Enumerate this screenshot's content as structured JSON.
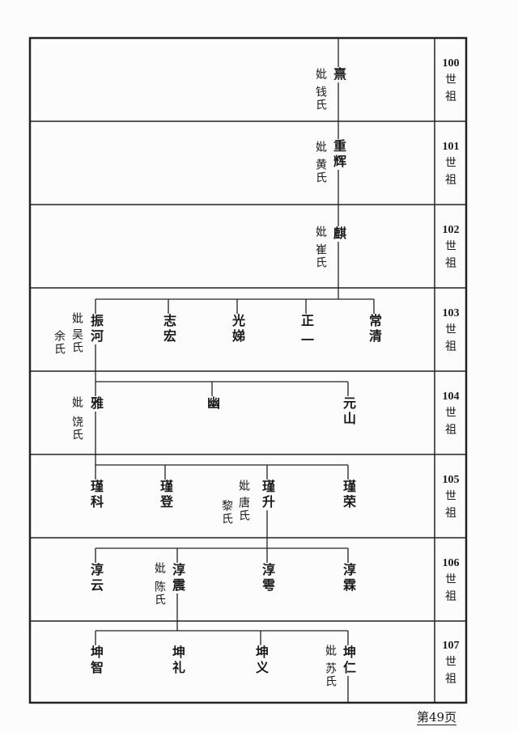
{
  "generations": [
    {
      "label_num": "100",
      "label_a": "世",
      "label_b": "祖",
      "persons": [
        {
          "name": "熹",
          "wife_prefix": "妣",
          "spouses": [
            "钱氏"
          ]
        }
      ]
    },
    {
      "label_num": "101",
      "label_a": "世",
      "label_b": "祖",
      "persons": [
        {
          "name": "重辉",
          "wife_prefix": "妣",
          "spouses": [
            "黄氏"
          ]
        }
      ]
    },
    {
      "label_num": "102",
      "label_a": "世",
      "label_b": "祖",
      "persons": [
        {
          "name": "麒",
          "wife_prefix": "妣",
          "spouses": [
            "崔氏"
          ]
        }
      ]
    },
    {
      "label_num": "103",
      "label_a": "世",
      "label_b": "祖",
      "persons": [
        {
          "name": "振河",
          "wife_prefix": "妣",
          "spouses": [
            "吴氏",
            "余氏"
          ]
        },
        {
          "name": "志宏"
        },
        {
          "name": "光娣"
        },
        {
          "name": "正一"
        },
        {
          "name": "常清"
        }
      ]
    },
    {
      "label_num": "104",
      "label_a": "世",
      "label_b": "祖",
      "persons": [
        {
          "name": "雅",
          "wife_prefix": "妣",
          "spouses": [
            "饶氏"
          ]
        },
        {
          "name": "幽"
        },
        {
          "name": "元山"
        }
      ]
    },
    {
      "label_num": "105",
      "label_a": "世",
      "label_b": "祖",
      "persons": [
        {
          "name": "瑾科"
        },
        {
          "name": "瑾登"
        },
        {
          "name": "瑾升",
          "wife_prefix": "妣",
          "spouses": [
            "唐氏",
            "黎氏"
          ]
        },
        {
          "name": "瑾荣"
        }
      ]
    },
    {
      "label_num": "106",
      "label_a": "世",
      "label_b": "祖",
      "persons": [
        {
          "name": "淳云"
        },
        {
          "name": "淳震",
          "wife_prefix": "妣",
          "spouses": [
            "陈氏"
          ]
        },
        {
          "name": "淳雩"
        },
        {
          "name": "淳霖"
        }
      ]
    },
    {
      "label_num": "107",
      "label_a": "世",
      "label_b": "祖",
      "persons": [
        {
          "name": "坤智"
        },
        {
          "name": "坤礼"
        },
        {
          "name": "坤义"
        },
        {
          "name": "坤仁",
          "wife_prefix": "妣",
          "spouses": [
            "苏氏"
          ]
        }
      ]
    }
  ],
  "page_number": "第49页"
}
